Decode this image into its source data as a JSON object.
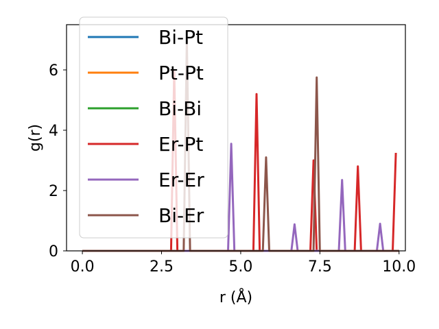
{
  "chart_data": {
    "type": "line",
    "title": "",
    "xlabel": "r (Å)",
    "ylabel": "g(r)",
    "xlim": [
      -0.5,
      10.2
    ],
    "ylim": [
      0,
      7.5
    ],
    "xticks": [
      0.0,
      2.5,
      5.0,
      7.5,
      10.0
    ],
    "xtick_labels": [
      "0.0",
      "2.5",
      "5.0",
      "7.5",
      "10.0"
    ],
    "yticks": [
      0,
      2,
      4,
      6
    ],
    "ytick_labels": [
      "0",
      "2",
      "4",
      "6"
    ],
    "grid": false,
    "legend_position": "upper-left",
    "series": [
      {
        "name": "Bi-Pt",
        "color": "#1f77b4",
        "points": [
          [
            0.0,
            0
          ],
          [
            10.0,
            0
          ]
        ]
      },
      {
        "name": "Pt-Pt",
        "color": "#ff7f0e",
        "points": [
          [
            0.0,
            0
          ],
          [
            10.0,
            0
          ]
        ]
      },
      {
        "name": "Bi-Bi",
        "color": "#2ca02c",
        "points": [
          [
            0.0,
            0
          ],
          [
            10.0,
            0
          ]
        ]
      },
      {
        "name": "Er-Pt",
        "color": "#d62728",
        "points": [
          [
            0.0,
            0
          ],
          [
            2.8,
            0
          ],
          [
            2.9,
            6.0
          ],
          [
            3.0,
            0
          ],
          [
            5.4,
            0
          ],
          [
            5.5,
            5.2
          ],
          [
            5.6,
            0
          ],
          [
            7.2,
            0
          ],
          [
            7.3,
            3.0
          ],
          [
            7.4,
            0
          ],
          [
            8.6,
            0
          ],
          [
            8.7,
            2.8
          ],
          [
            8.8,
            0
          ],
          [
            9.8,
            0
          ],
          [
            9.9,
            3.25
          ]
        ]
      },
      {
        "name": "Er-Er",
        "color": "#9467bd",
        "points": [
          [
            0.0,
            0
          ],
          [
            4.6,
            0
          ],
          [
            4.7,
            3.55
          ],
          [
            4.8,
            0
          ],
          [
            6.6,
            0
          ],
          [
            6.7,
            0.88
          ],
          [
            6.8,
            0
          ],
          [
            8.1,
            0
          ],
          [
            8.2,
            2.35
          ],
          [
            8.3,
            0
          ],
          [
            9.3,
            0
          ],
          [
            9.4,
            0.9
          ],
          [
            9.5,
            0
          ],
          [
            10.0,
            0
          ]
        ]
      },
      {
        "name": "Bi-Er",
        "color": "#8c564b",
        "points": [
          [
            0.0,
            0
          ],
          [
            3.2,
            0
          ],
          [
            3.3,
            7.0
          ],
          [
            3.4,
            0
          ],
          [
            5.7,
            0
          ],
          [
            5.8,
            3.1
          ],
          [
            5.9,
            0
          ],
          [
            7.3,
            0
          ],
          [
            7.4,
            5.75
          ],
          [
            7.5,
            0
          ],
          [
            10.0,
            0
          ]
        ]
      }
    ]
  }
}
